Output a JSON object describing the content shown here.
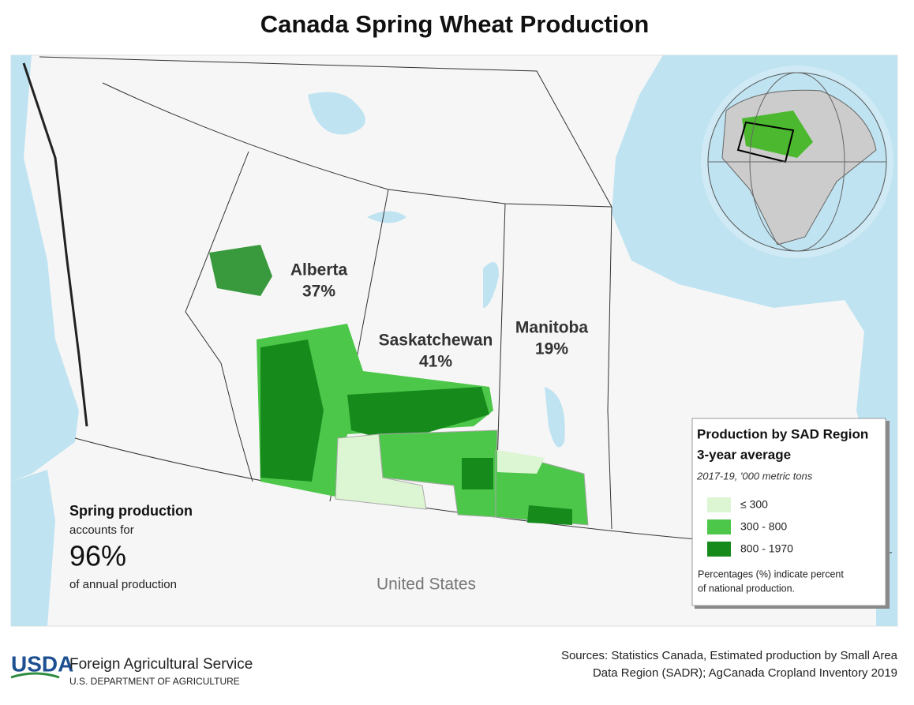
{
  "header": {
    "title": "Canada Spring Wheat Production"
  },
  "map": {
    "provinces": [
      {
        "name": "Alberta",
        "share": "37%"
      },
      {
        "name": "Saskatchewan",
        "share": "41%"
      },
      {
        "name": "Manitoba",
        "share": "19%"
      }
    ],
    "neighbor": "United States"
  },
  "legend": {
    "title": "Production by SAD Region",
    "subtitle": "3-year average",
    "units": "2017-19, '000 metric tons",
    "items": [
      {
        "label": "≤ 300",
        "color": "#dcf5d2"
      },
      {
        "label": "300 - 800",
        "color": "#4cc74a"
      },
      {
        "label": "800 - 1970",
        "color": "#178a1c"
      }
    ],
    "note": [
      "Percentages (%) indicate percent",
      "of national production."
    ]
  },
  "callout": {
    "heading": "Spring production",
    "line1": "accounts for",
    "value": "96%",
    "line2": "of annual production"
  },
  "footer": {
    "logo": "USDA",
    "agency": "Foreign Agricultural Service",
    "department": "U.S. DEPARTMENT OF AGRICULTURE",
    "sources": [
      "Sources: Statistics Canada, Estimated production by Small Area",
      "Data Region (SADR); AgCanada Cropland Inventory 2019"
    ]
  }
}
